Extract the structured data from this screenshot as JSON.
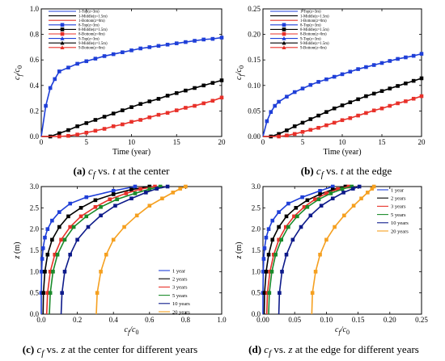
{
  "chart_data": [
    {
      "id": "a",
      "type": "line",
      "caption": {
        "letter": "(a)",
        "sym1": "c",
        "sub1": "f",
        "mid": " vs. ",
        "sym2": "t",
        "rest": " at the center"
      },
      "xlabel": "Time (year)",
      "ylabel": {
        "c": "c",
        "s1": "f",
        "slash": "/c",
        "s2": "0"
      },
      "xlim": [
        0,
        20
      ],
      "ylim": [
        0,
        1.0
      ],
      "xticks": [
        "0",
        "5",
        "10",
        "15",
        "20"
      ],
      "yticks": [
        "0.0",
        "0.2",
        "0.4",
        "0.6",
        "0.8",
        "1.0"
      ],
      "legend": [
        {
          "label": "1-Top(z=3m)",
          "color": "#1f3fd8",
          "marker": "none"
        },
        {
          "label": "1-Middle(z=1.5m)",
          "color": "#000000",
          "marker": "none"
        },
        {
          "label": "1-Bottom(z=0m)",
          "color": "#e8312a",
          "marker": "none"
        },
        {
          "label": "8-Top(z=3m)",
          "color": "#1f3fd8",
          "marker": "square"
        },
        {
          "label": "8-Middle(z=1.5m)",
          "color": "#000000",
          "marker": "square"
        },
        {
          "label": "8-Bottom(z=0m)",
          "color": "#e8312a",
          "marker": "square"
        },
        {
          "label": "9-Top(z=3m)",
          "color": "#1f3fd8",
          "marker": "triangle"
        },
        {
          "label": "9-Middle(z=1.5m)",
          "color": "#000000",
          "marker": "triangle"
        },
        {
          "label": "9-Bottom(z=0m)",
          "color": "#e8312a",
          "marker": "triangle"
        }
      ],
      "series": [
        {
          "color": "#1f3fd8",
          "marker": "square",
          "x": [
            0,
            0.5,
            1,
            1.5,
            2,
            3,
            4,
            5,
            6,
            7,
            8,
            9,
            10,
            11,
            12,
            13,
            14,
            15,
            16,
            17,
            18,
            19,
            20
          ],
          "y": [
            0,
            0.24,
            0.38,
            0.45,
            0.51,
            0.54,
            0.57,
            0.59,
            0.61,
            0.63,
            0.645,
            0.66,
            0.675,
            0.69,
            0.7,
            0.71,
            0.72,
            0.73,
            0.74,
            0.75,
            0.76,
            0.765,
            0.775
          ]
        },
        {
          "color": "#000000",
          "marker": "square",
          "x": [
            0,
            1,
            2,
            3,
            4,
            5,
            6,
            7,
            8,
            9,
            10,
            11,
            12,
            13,
            14,
            15,
            16,
            17,
            18,
            19,
            20
          ],
          "y": [
            0,
            0,
            0.025,
            0.05,
            0.08,
            0.105,
            0.13,
            0.155,
            0.18,
            0.205,
            0.23,
            0.255,
            0.275,
            0.295,
            0.32,
            0.34,
            0.36,
            0.38,
            0.4,
            0.42,
            0.44
          ]
        },
        {
          "color": "#e8312a",
          "marker": "square",
          "x": [
            0,
            2,
            3,
            4,
            5,
            6,
            7,
            8,
            9,
            10,
            11,
            12,
            13,
            14,
            15,
            16,
            17,
            18,
            19,
            20
          ],
          "y": [
            0,
            0,
            0.005,
            0.015,
            0.03,
            0.045,
            0.06,
            0.08,
            0.095,
            0.115,
            0.13,
            0.15,
            0.17,
            0.185,
            0.205,
            0.225,
            0.24,
            0.26,
            0.28,
            0.305
          ]
        }
      ]
    },
    {
      "id": "b",
      "type": "line",
      "caption": {
        "letter": "(b)",
        "sym1": "c",
        "sub1": "f",
        "mid": " vs. ",
        "sym2": "t",
        "rest": " at the edge"
      },
      "xlabel": "Time (year)",
      "ylabel": {
        "c": "c",
        "s1": "f",
        "slash": "/c",
        "s2": "0"
      },
      "xlim": [
        0,
        20
      ],
      "ylim": [
        0,
        0.25
      ],
      "xticks": [
        "0",
        "5",
        "10",
        "15",
        "20"
      ],
      "yticks": [
        "0.00",
        "0.05",
        "0.10",
        "0.15",
        "0.20",
        "0.25"
      ],
      "legend": [
        {
          "label": "1-Top(z=3m)",
          "color": "#1f3fd8",
          "marker": "none"
        },
        {
          "label": "1-Middle(z=1.5m)",
          "color": "#000000",
          "marker": "none"
        },
        {
          "label": "1-Bottom(z=0m)",
          "color": "#e8312a",
          "marker": "none"
        },
        {
          "label": "8-Top(z=3m)",
          "color": "#1f3fd8",
          "marker": "square"
        },
        {
          "label": "8-Middle(z=1.5m)",
          "color": "#000000",
          "marker": "square"
        },
        {
          "label": "8-Bottom(z=0m)",
          "color": "#e8312a",
          "marker": "square"
        },
        {
          "label": "9-Top(z=3m)",
          "color": "#1f3fd8",
          "marker": "triangle"
        },
        {
          "label": "9-Middle(z=1.5m)",
          "color": "#000000",
          "marker": "triangle"
        },
        {
          "label": "9-Bottom(z=0m)",
          "color": "#e8312a",
          "marker": "triangle"
        }
      ],
      "series": [
        {
          "color": "#1f3fd8",
          "marker": "square",
          "x": [
            0,
            0.5,
            1,
            1.5,
            2,
            3,
            4,
            5,
            6,
            7,
            8,
            9,
            10,
            11,
            12,
            13,
            14,
            15,
            16,
            17,
            18,
            19,
            20
          ],
          "y": [
            0,
            0.03,
            0.048,
            0.06,
            0.068,
            0.078,
            0.087,
            0.094,
            0.101,
            0.107,
            0.112,
            0.117,
            0.122,
            0.127,
            0.132,
            0.136,
            0.14,
            0.144,
            0.148,
            0.152,
            0.155,
            0.158,
            0.162
          ]
        },
        {
          "color": "#000000",
          "marker": "square",
          "x": [
            0,
            1,
            2,
            3,
            4,
            5,
            6,
            7,
            8,
            9,
            10,
            11,
            12,
            13,
            14,
            15,
            16,
            17,
            18,
            19,
            20
          ],
          "y": [
            0,
            0,
            0.005,
            0.012,
            0.02,
            0.027,
            0.034,
            0.041,
            0.048,
            0.055,
            0.061,
            0.067,
            0.073,
            0.079,
            0.084,
            0.089,
            0.094,
            0.099,
            0.104,
            0.109,
            0.114
          ]
        },
        {
          "color": "#e8312a",
          "marker": "square",
          "x": [
            0,
            2,
            3,
            4,
            5,
            6,
            7,
            8,
            9,
            10,
            11,
            12,
            13,
            14,
            15,
            16,
            17,
            18,
            19,
            20
          ],
          "y": [
            0,
            0,
            0.002,
            0.005,
            0.009,
            0.013,
            0.017,
            0.022,
            0.027,
            0.032,
            0.036,
            0.041,
            0.046,
            0.051,
            0.055,
            0.06,
            0.065,
            0.069,
            0.074,
            0.079
          ]
        }
      ]
    },
    {
      "id": "c",
      "type": "line",
      "caption": {
        "letter": "(c)",
        "sym1": "c",
        "sub1": "f",
        "mid": " vs. ",
        "sym2": "z",
        "rest": " at the center for different years"
      },
      "xlabel": {
        "c": "c",
        "s1": "f",
        "slash": "/c",
        "s2": "0"
      },
      "ylabel": "z (m)",
      "xlim": [
        0,
        1.0
      ],
      "ylim": [
        0,
        3.0
      ],
      "xticks": [
        "0.0",
        "0.2",
        "0.4",
        "0.6",
        "0.8",
        "1.0"
      ],
      "yticks": [
        "0.0",
        "0.5",
        "1.0",
        "1.5",
        "2.0",
        "2.5",
        "3.0"
      ],
      "legend": [
        {
          "label": "1 year",
          "color": "#1f3fd8"
        },
        {
          "label": "2 years",
          "color": "#000000"
        },
        {
          "label": "3 years",
          "color": "#e8312a"
        },
        {
          "label": "5 years",
          "color": "#1a8a2a"
        },
        {
          "label": "10 years",
          "color": "#0d1a8a"
        },
        {
          "label": "20 years",
          "color": "#f5a020"
        }
      ],
      "series": [
        {
          "color": "#1f3fd8",
          "x": [
            0.0,
            0.0,
            0.002,
            0.005,
            0.01,
            0.02,
            0.035,
            0.06,
            0.1,
            0.16,
            0.25,
            0.4,
            0.52
          ],
          "y": [
            0,
            0.5,
            1.0,
            1.3,
            1.55,
            1.8,
            2.0,
            2.2,
            2.4,
            2.6,
            2.75,
            2.9,
            3.0
          ]
        },
        {
          "color": "#000000",
          "x": [
            0.01,
            0.012,
            0.02,
            0.035,
            0.06,
            0.1,
            0.15,
            0.22,
            0.3,
            0.4,
            0.5,
            0.6
          ],
          "y": [
            0,
            0.5,
            1.0,
            1.4,
            1.75,
            2.05,
            2.3,
            2.5,
            2.68,
            2.82,
            2.93,
            3.0
          ]
        },
        {
          "color": "#e8312a",
          "x": [
            0.03,
            0.035,
            0.05,
            0.075,
            0.11,
            0.16,
            0.22,
            0.3,
            0.38,
            0.47,
            0.55,
            0.63
          ],
          "y": [
            0,
            0.5,
            1.0,
            1.4,
            1.75,
            2.05,
            2.3,
            2.52,
            2.7,
            2.84,
            2.94,
            3.0
          ]
        },
        {
          "color": "#1a8a2a",
          "x": [
            0.045,
            0.05,
            0.065,
            0.09,
            0.13,
            0.18,
            0.25,
            0.33,
            0.42,
            0.52,
            0.6,
            0.66
          ],
          "y": [
            0,
            0.5,
            1.0,
            1.4,
            1.75,
            2.05,
            2.3,
            2.52,
            2.7,
            2.84,
            2.94,
            3.0
          ]
        },
        {
          "color": "#0d1a8a",
          "x": [
            0.11,
            0.115,
            0.13,
            0.16,
            0.2,
            0.26,
            0.33,
            0.41,
            0.5,
            0.58,
            0.64,
            0.7
          ],
          "y": [
            0,
            0.5,
            1.0,
            1.4,
            1.75,
            2.05,
            2.32,
            2.55,
            2.72,
            2.86,
            2.95,
            3.0
          ]
        },
        {
          "color": "#f5a020",
          "x": [
            0.305,
            0.31,
            0.33,
            0.36,
            0.4,
            0.46,
            0.53,
            0.6,
            0.67,
            0.73,
            0.77,
            0.8
          ],
          "y": [
            0,
            0.5,
            1.0,
            1.4,
            1.75,
            2.05,
            2.32,
            2.55,
            2.72,
            2.86,
            2.95,
            3.0
          ]
        }
      ]
    },
    {
      "id": "d",
      "type": "line",
      "caption": {
        "letter": "(d)",
        "sym1": "c",
        "sub1": "f",
        "mid": " vs. ",
        "sym2": "z",
        "rest": " at the edge for different years"
      },
      "xlabel": {
        "c": "c",
        "s1": "f",
        "slash": "/c",
        "s2": "0"
      },
      "ylabel": "z (m)",
      "xlim": [
        0,
        0.25
      ],
      "ylim": [
        0,
        3.0
      ],
      "xticks": [
        "0.00",
        "0.05",
        "0.10",
        "0.15",
        "0.20",
        "0.25"
      ],
      "yticks": [
        "0.0",
        "0.5",
        "1.0",
        "1.5",
        "2.0",
        "2.5",
        "3.0"
      ],
      "legend": [
        {
          "label": "1 year",
          "color": "#1f3fd8"
        },
        {
          "label": "2 years",
          "color": "#000000"
        },
        {
          "label": "3 years",
          "color": "#e8312a"
        },
        {
          "label": "5 years",
          "color": "#1a8a2a"
        },
        {
          "label": "10 years",
          "color": "#0d1a8a"
        },
        {
          "label": "20 years",
          "color": "#f5a020"
        }
      ],
      "series": [
        {
          "color": "#1f3fd8",
          "x": [
            0.0,
            0.0,
            0.0005,
            0.0012,
            0.0025,
            0.005,
            0.009,
            0.015,
            0.025,
            0.04,
            0.062,
            0.09,
            0.11
          ],
          "y": [
            0,
            0.5,
            1.0,
            1.3,
            1.55,
            1.8,
            2.0,
            2.2,
            2.4,
            2.6,
            2.75,
            2.9,
            3.0
          ]
        },
        {
          "color": "#000000",
          "x": [
            0.002,
            0.0025,
            0.005,
            0.009,
            0.015,
            0.025,
            0.037,
            0.052,
            0.07,
            0.09,
            0.11,
            0.13
          ],
          "y": [
            0,
            0.5,
            1.0,
            1.4,
            1.75,
            2.05,
            2.3,
            2.5,
            2.68,
            2.82,
            2.93,
            3.0
          ]
        },
        {
          "color": "#e8312a",
          "x": [
            0.006,
            0.007,
            0.011,
            0.017,
            0.025,
            0.036,
            0.049,
            0.065,
            0.082,
            0.1,
            0.118,
            0.135
          ],
          "y": [
            0,
            0.5,
            1.0,
            1.4,
            1.75,
            2.05,
            2.3,
            2.52,
            2.7,
            2.84,
            2.94,
            3.0
          ]
        },
        {
          "color": "#1a8a2a",
          "x": [
            0.009,
            0.01,
            0.014,
            0.02,
            0.029,
            0.04,
            0.054,
            0.07,
            0.088,
            0.107,
            0.125,
            0.14
          ],
          "y": [
            0,
            0.5,
            1.0,
            1.4,
            1.75,
            2.05,
            2.3,
            2.52,
            2.7,
            2.84,
            2.94,
            3.0
          ]
        },
        {
          "color": "#0d1a8a",
          "x": [
            0.025,
            0.026,
            0.03,
            0.037,
            0.047,
            0.06,
            0.075,
            0.092,
            0.11,
            0.127,
            0.142,
            0.152
          ],
          "y": [
            0,
            0.5,
            1.0,
            1.4,
            1.75,
            2.05,
            2.32,
            2.55,
            2.72,
            2.86,
            2.95,
            3.0
          ]
        },
        {
          "color": "#f5a020",
          "x": [
            0.077,
            0.078,
            0.083,
            0.09,
            0.1,
            0.113,
            0.128,
            0.143,
            0.155,
            0.165,
            0.172,
            0.175
          ],
          "y": [
            0,
            0.5,
            1.0,
            1.4,
            1.75,
            2.05,
            2.32,
            2.55,
            2.72,
            2.86,
            2.95,
            3.0
          ]
        }
      ]
    }
  ]
}
